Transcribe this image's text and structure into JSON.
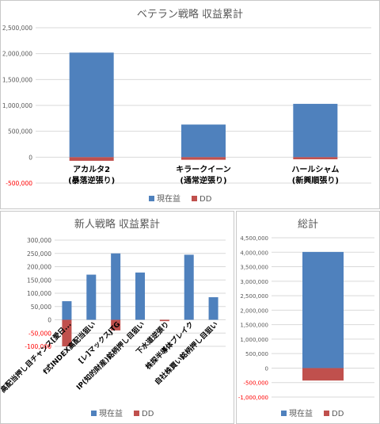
{
  "colors": {
    "current": "#4f81bd",
    "dd": "#c0504d",
    "grid": "#d9d9d9",
    "text": "#595959",
    "negtick": "#ff0000"
  },
  "chart_data": [
    {
      "type": "bar",
      "title": "ベテラン戦略 収益累計",
      "categories": [
        "アカルタ2\n(暴落逆張り)",
        "キラークイーン\n(通常逆張り)",
        "ハールシャム\n(新興順張り)"
      ],
      "series": [
        {
          "name": "現在益",
          "color": "#4f81bd",
          "values": [
            2020000,
            630000,
            1030000
          ]
        },
        {
          "name": "DD",
          "color": "#c0504d",
          "values": [
            -70000,
            -50000,
            -40000
          ]
        }
      ],
      "ylim": [
        -500000,
        2500000
      ],
      "yticks": [
        -500000,
        0,
        500000,
        1000000,
        1500000,
        2000000,
        2500000
      ],
      "ytick_labels": [
        "-500,000",
        "0",
        "500,000",
        "1,000,000",
        "1,500,000",
        "2,000,000",
        "2,500,000"
      ],
      "grid": true,
      "legend": "bottom"
    },
    {
      "type": "bar",
      "title": "新人戦略 収益累計",
      "categories": [
        "高配当押し目チャンス[愛日...",
        "f式INDEX高配当狙い",
        "[レ]マックスJTG",
        "IP(知的財産)銘柄押し目狙い",
        "下水道逆張り",
        "株探半導体ブレイク",
        "自社株買い銘柄押し目狙い"
      ],
      "series": [
        {
          "name": "現在益",
          "color": "#4f81bd",
          "values": [
            70000,
            170000,
            250000,
            178000,
            0,
            245000,
            85000
          ]
        },
        {
          "name": "DD",
          "color": "#c0504d",
          "values": [
            -100000,
            0,
            -40000,
            0,
            -5000,
            0,
            0
          ]
        }
      ],
      "ylim": [
        -100000,
        300000
      ],
      "yticks": [
        -100000,
        -50000,
        0,
        50000,
        100000,
        150000,
        200000,
        250000,
        300000
      ],
      "ytick_labels": [
        "-100,000",
        "-50,000",
        "0",
        "50,000",
        "100,000",
        "150,000",
        "200,000",
        "250,000",
        "300,000"
      ],
      "grid": true,
      "legend": "bottom"
    },
    {
      "type": "bar",
      "title": "総計",
      "categories": [
        ""
      ],
      "series": [
        {
          "name": "現在益",
          "color": "#4f81bd",
          "values": [
            4010000
          ]
        },
        {
          "name": "DD",
          "color": "#c0504d",
          "values": [
            -430000
          ]
        }
      ],
      "ylim": [
        -1000000,
        4500000
      ],
      "yticks": [
        -1000000,
        -500000,
        0,
        500000,
        1000000,
        1500000,
        2000000,
        2500000,
        3000000,
        3500000,
        4000000,
        4500000
      ],
      "ytick_labels": [
        "-1,000,000",
        "-500,000",
        "0",
        "500,000",
        "1,000,000",
        "1,500,000",
        "2,000,000",
        "2,500,000",
        "3,000,000",
        "3,500,000",
        "4,000,000",
        "4,500,000"
      ],
      "grid": true,
      "legend": "bottom"
    }
  ]
}
